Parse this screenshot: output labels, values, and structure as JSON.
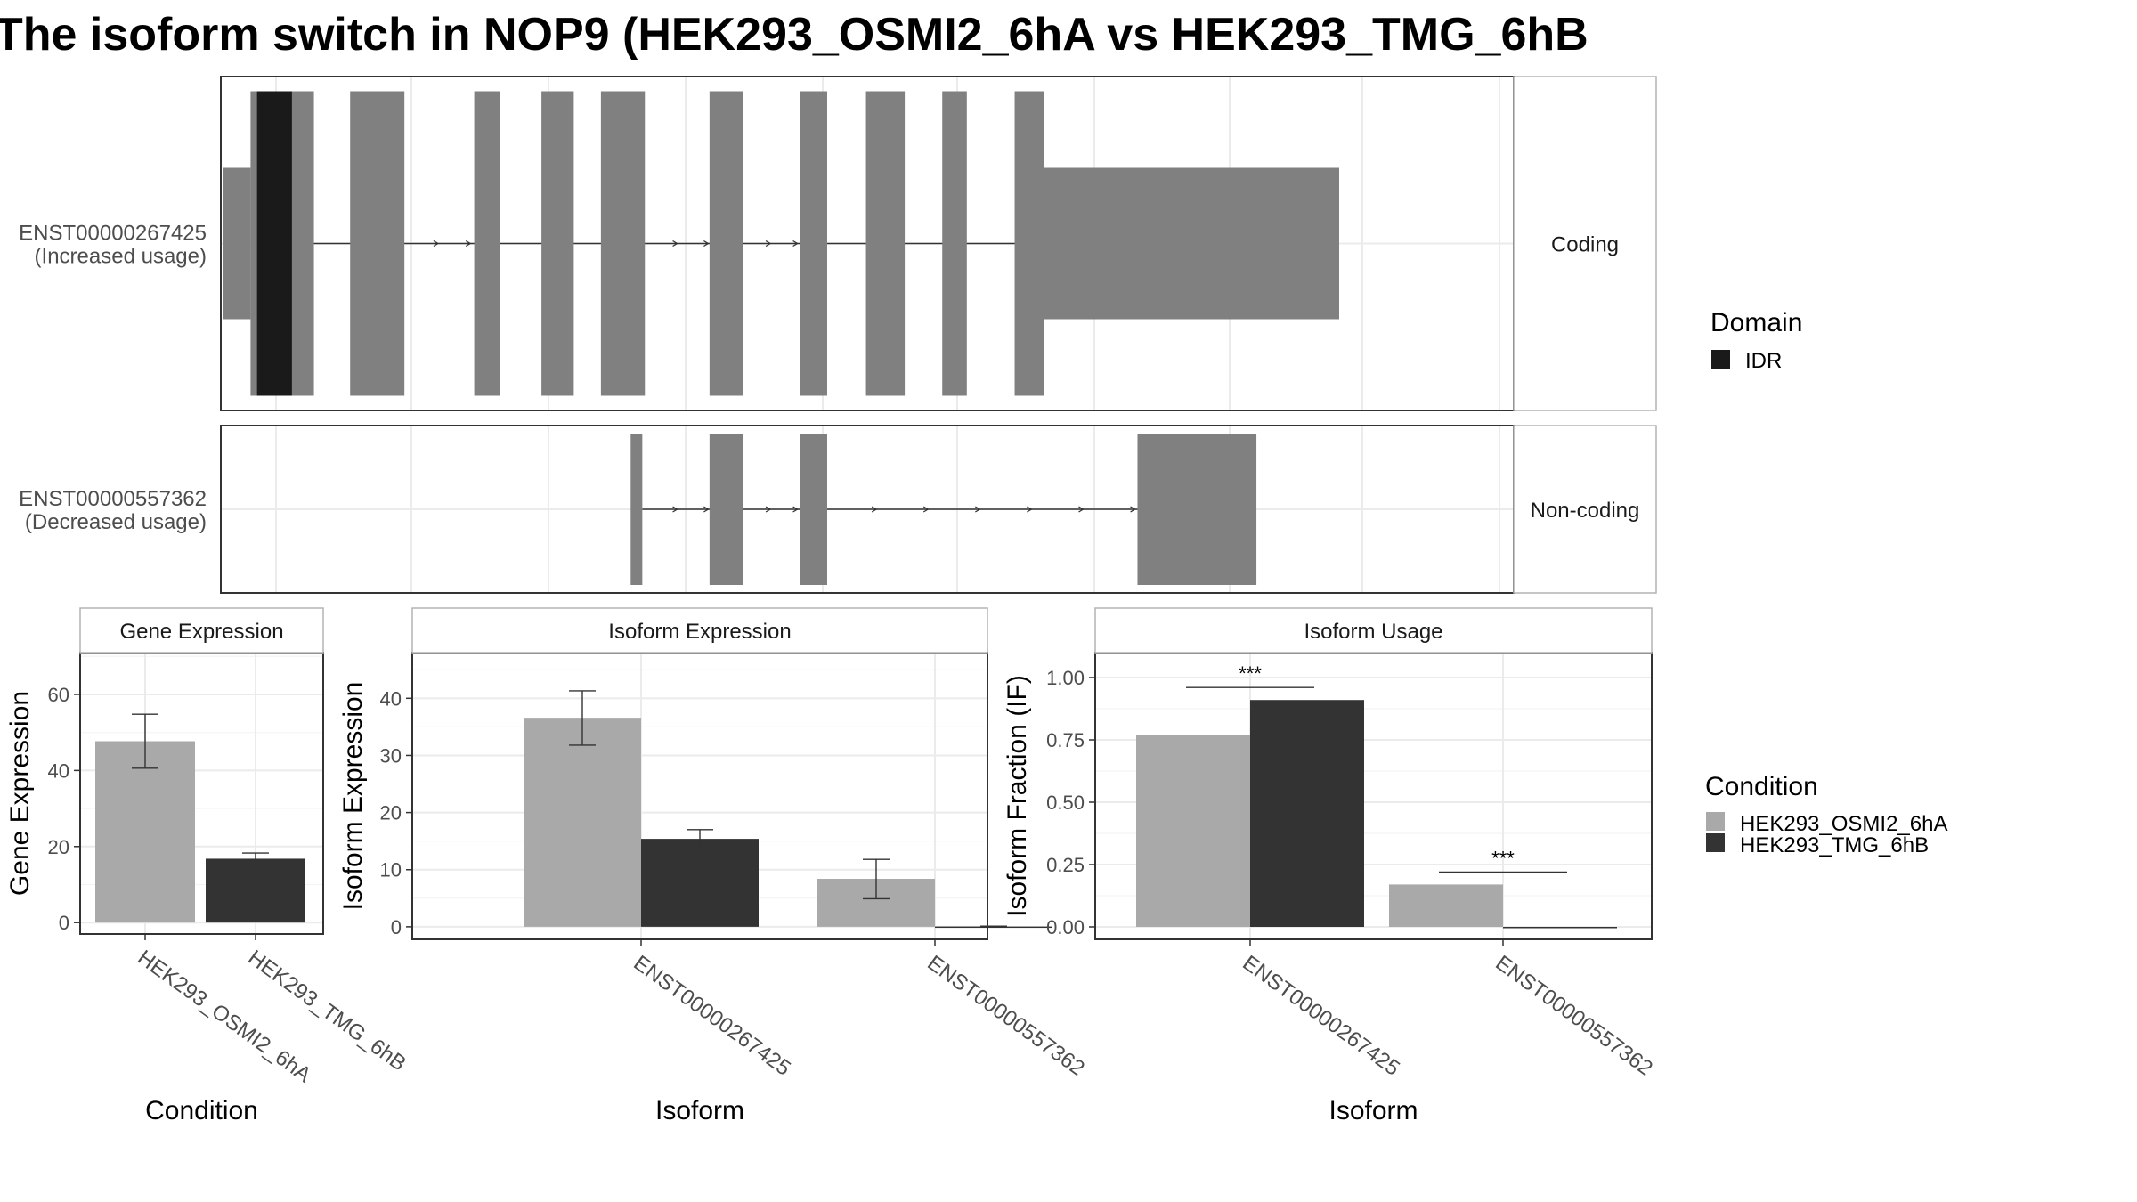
{
  "title": "The isoform switch in NOP9 (HEK293_OSMI2_6hA vs HEK293_TMG_6hB",
  "colors": {
    "exon": "#808080",
    "idr": "#1a1a1a",
    "cond1": "#a9a9a9",
    "cond2": "#333333",
    "grid": "#ebebeb",
    "strip": "#ffffff",
    "panel_border": "#333333"
  },
  "structure": {
    "x_range": [
      0,
      100
    ],
    "domain_legend": {
      "title": "Domain",
      "items": [
        {
          "label": "IDR",
          "color": "#1a1a1a"
        }
      ]
    },
    "transcripts": [
      {
        "label_id": "ENST00000267425",
        "label_note": "(Increased usage)",
        "strip": "Coding",
        "utr_blocks": [
          [
            0.2,
            2.3
          ],
          [
            84.5,
            86.5
          ]
        ],
        "exons": [
          [
            2.3,
            7.2
          ],
          [
            10.0,
            14.2
          ],
          [
            19.6,
            21.6
          ],
          [
            24.8,
            27.3
          ],
          [
            29.4,
            32.8
          ],
          [
            37.8,
            40.4
          ],
          [
            44.8,
            46.9
          ],
          [
            49.9,
            52.9
          ],
          [
            55.8,
            57.7
          ],
          [
            61.4,
            63.7
          ],
          [
            63.7,
            86.5
          ]
        ],
        "utr3": [
          63.7,
          86.5
        ],
        "idr": [
          [
            2.8,
            5.5
          ]
        ],
        "intron": [
          7.2,
          61.4
        ],
        "arrows": [
          16.8,
          19.3,
          35.3,
          37.7,
          42.5,
          44.6
        ]
      },
      {
        "label_id": "ENST00000557362",
        "label_note": "(Decreased usage)",
        "strip": "Non-coding",
        "exons": [
          [
            31.7,
            32.6
          ],
          [
            37.8,
            40.4
          ],
          [
            44.8,
            46.9
          ],
          [
            70.9,
            80.1
          ]
        ],
        "idr": [],
        "intron": [
          32.6,
          70.9
        ],
        "arrows": [
          35.3,
          37.7,
          42.5,
          44.6,
          50.7,
          54.7,
          58.7,
          62.7,
          66.7,
          70.7
        ]
      }
    ]
  },
  "chart_data": [
    {
      "type": "bar",
      "strip": "Gene Expression",
      "xlabel": "Condition",
      "ylabel": "Gene Expression",
      "ylim": [
        -3,
        71
      ],
      "yticks": [
        "0",
        "20",
        "40",
        "60"
      ],
      "categories": [
        "HEK293_OSMI2_6hA",
        "HEK293_TMG_6hB"
      ],
      "values": [
        47.7,
        16.8
      ],
      "errors": [
        [
          40.6,
          54.8
        ],
        [
          15.3,
          18.3
        ]
      ]
    },
    {
      "type": "bar",
      "strip": "Isoform Expression",
      "xlabel": "Isoform",
      "ylabel": "Isoform Expression",
      "ylim": [
        -2.2,
        48
      ],
      "yticks": [
        "0",
        "10",
        "20",
        "30",
        "40"
      ],
      "categories": [
        "ENST00000267425",
        "ENST00000557362"
      ],
      "series": [
        {
          "name": "HEK293_OSMI2_6hA",
          "values": [
            36.6,
            8.4
          ],
          "errors": [
            [
              31.8,
              41.3
            ],
            [
              4.9,
              11.8
            ]
          ]
        },
        {
          "name": "HEK293_TMG_6hB",
          "values": [
            15.4,
            0.05
          ],
          "errors": [
            [
              13.8,
              17.0
            ],
            [
              0,
              0.1
            ]
          ]
        }
      ]
    },
    {
      "type": "bar",
      "strip": "Isoform Usage",
      "xlabel": "Isoform",
      "ylabel": "Isoform Fraction (IF)",
      "ylim": [
        -0.05,
        1.1
      ],
      "yticks": [
        "0.00",
        "0.25",
        "0.50",
        "0.75",
        "1.00"
      ],
      "categories": [
        "ENST00000267425",
        "ENST00000557362"
      ],
      "series": [
        {
          "name": "HEK293_OSMI2_6hA",
          "values": [
            0.77,
            0.17
          ]
        },
        {
          "name": "HEK293_TMG_6hB",
          "values": [
            0.91,
            0.0
          ]
        }
      ],
      "significance": [
        {
          "category_index": 0,
          "label": "***",
          "y": 0.96
        },
        {
          "category_index": 1,
          "label": "***",
          "y": 0.22
        }
      ]
    }
  ],
  "condition_legend": {
    "title": "Condition",
    "items": [
      {
        "label": "HEK293_OSMI2_6hA",
        "color": "#a9a9a9"
      },
      {
        "label": "HEK293_TMG_6hB",
        "color": "#333333"
      }
    ]
  }
}
